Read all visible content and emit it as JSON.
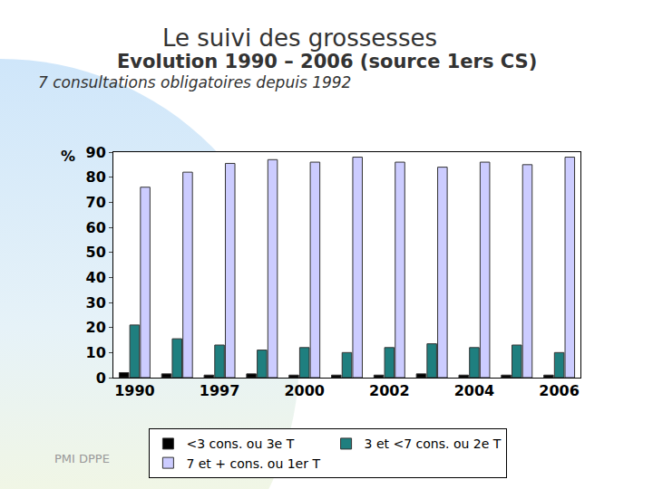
{
  "chart_data": {
    "type": "bar",
    "title": "Le suivi des grossesses",
    "subtitle": "Evolution 1990 – 2006 (source 1ers CS)",
    "annotations": [
      "7 consultations obligatoires depuis 1992",
      "PMI DPPE"
    ],
    "y_label": "%",
    "categories": [
      "1990",
      null,
      "1997",
      null,
      "2000",
      null,
      "2002",
      null,
      "2004",
      null,
      "2006"
    ],
    "series": [
      {
        "name": "<3 cons. ou 3e T",
        "color": "#000000",
        "values": [
          2,
          1.5,
          1,
          1.5,
          1,
          1,
          1,
          1.5,
          1,
          1,
          1
        ]
      },
      {
        "name": "3 et <7 cons. ou 2e T",
        "color": "#1f7f7f",
        "values": [
          21,
          15.5,
          13,
          11,
          12,
          10,
          12,
          13.5,
          12,
          13,
          10
        ]
      },
      {
        "name": "7 et + cons. ou 1er T",
        "color": "#ccccff",
        "values": [
          76,
          82,
          85.5,
          87,
          86,
          88,
          86,
          84,
          86,
          85,
          88
        ]
      }
    ],
    "ylim": [
      0,
      90
    ],
    "yticks": [
      0,
      10,
      20,
      30,
      40,
      50,
      60,
      70,
      80,
      90
    ],
    "grid": false,
    "legend": "bottom"
  }
}
